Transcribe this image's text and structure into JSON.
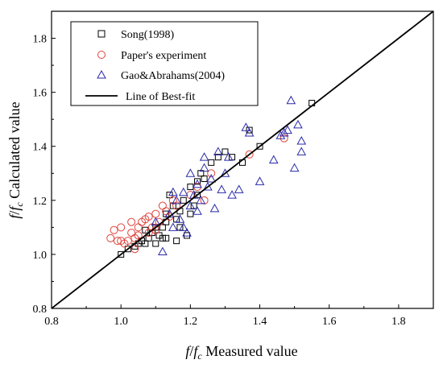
{
  "chart_data": {
    "type": "scatter",
    "title": "",
    "xlabel": {
      "f": "f",
      "slash": "/",
      "fc": "f",
      "fc_sub": "c",
      "text": " Measured value"
    },
    "ylabel": {
      "f": "f",
      "slash": "/",
      "fc": "f",
      "fc_sub": "c",
      "text": " Calculated value"
    },
    "xlim": [
      0.8,
      1.9
    ],
    "ylim": [
      0.8,
      1.9
    ],
    "x_ticks": [
      0.8,
      1.0,
      1.2,
      1.4,
      1.6,
      1.8
    ],
    "y_ticks": [
      0.8,
      1.0,
      1.2,
      1.4,
      1.6,
      1.8
    ],
    "tick_labels": [
      "0.8",
      "1.0",
      "1.2",
      "1.4",
      "1.6",
      "1.8"
    ],
    "grid": false,
    "legend_position": "top-left",
    "legend": [
      {
        "label": "Song(1998)",
        "marker": "square",
        "color": "#000000"
      },
      {
        "label": "Paper's experiment",
        "marker": "circle",
        "color": "#e0413a"
      },
      {
        "label": "Gao&Abrahams(2004)",
        "marker": "triangle",
        "color": "#2a2aa8"
      },
      {
        "label": "Line of Best-fit",
        "marker": "line",
        "color": "#000000"
      }
    ],
    "best_fit_line": {
      "x": [
        0.8,
        1.9
      ],
      "y": [
        0.8,
        1.9
      ]
    },
    "series": [
      {
        "name": "Song(1998)",
        "marker": "square",
        "color": "#000000",
        "points": [
          [
            1.0,
            1.0
          ],
          [
            1.02,
            1.02
          ],
          [
            1.04,
            1.03
          ],
          [
            1.05,
            1.04
          ],
          [
            1.06,
            1.05
          ],
          [
            1.07,
            1.04
          ],
          [
            1.08,
            1.06
          ],
          [
            1.09,
            1.08
          ],
          [
            1.1,
            1.04
          ],
          [
            1.1,
            1.1
          ],
          [
            1.11,
            1.07
          ],
          [
            1.12,
            1.1
          ],
          [
            1.12,
            1.06
          ],
          [
            1.13,
            1.12
          ],
          [
            1.13,
            1.15
          ],
          [
            1.14,
            1.22
          ],
          [
            1.15,
            1.18
          ],
          [
            1.16,
            1.13
          ],
          [
            1.16,
            1.05
          ],
          [
            1.17,
            1.16
          ],
          [
            1.17,
            1.1
          ],
          [
            1.18,
            1.2
          ],
          [
            1.19,
            1.07
          ],
          [
            1.2,
            1.25
          ],
          [
            1.2,
            1.15
          ],
          [
            1.21,
            1.18
          ],
          [
            1.22,
            1.27
          ],
          [
            1.22,
            1.22
          ],
          [
            1.23,
            1.3
          ],
          [
            1.24,
            1.28
          ],
          [
            1.26,
            1.34
          ],
          [
            1.28,
            1.36
          ],
          [
            1.3,
            1.38
          ],
          [
            1.32,
            1.36
          ],
          [
            1.35,
            1.34
          ],
          [
            1.37,
            1.46
          ],
          [
            1.4,
            1.4
          ],
          [
            1.55,
            1.56
          ],
          [
            1.13,
            1.06
          ],
          [
            1.07,
            1.09
          ]
        ]
      },
      {
        "name": "Paper's experiment",
        "marker": "circle",
        "color": "#e0413a",
        "points": [
          [
            0.97,
            1.06
          ],
          [
            0.98,
            1.09
          ],
          [
            0.99,
            1.05
          ],
          [
            1.0,
            1.1
          ],
          [
            1.0,
            1.05
          ],
          [
            1.01,
            1.04
          ],
          [
            1.02,
            1.05
          ],
          [
            1.03,
            1.08
          ],
          [
            1.03,
            1.12
          ],
          [
            1.04,
            1.06
          ],
          [
            1.05,
            1.07
          ],
          [
            1.05,
            1.1
          ],
          [
            1.06,
            1.12
          ],
          [
            1.07,
            1.13
          ],
          [
            1.08,
            1.08
          ],
          [
            1.08,
            1.14
          ],
          [
            1.09,
            1.1
          ],
          [
            1.1,
            1.15
          ],
          [
            1.11,
            1.12
          ],
          [
            1.12,
            1.18
          ],
          [
            1.13,
            1.16
          ],
          [
            1.15,
            1.2
          ],
          [
            1.16,
            1.18
          ],
          [
            1.2,
            1.22
          ],
          [
            1.22,
            1.25
          ],
          [
            1.24,
            1.2
          ],
          [
            1.26,
            1.3
          ],
          [
            1.37,
            1.37
          ],
          [
            1.47,
            1.43
          ],
          [
            1.04,
            1.02
          ],
          [
            1.1,
            1.09
          ],
          [
            1.14,
            1.14
          ]
        ]
      },
      {
        "name": "Gao&Abrahams(2004)",
        "marker": "triangle",
        "color": "#2a2aa8",
        "points": [
          [
            1.1,
            1.12
          ],
          [
            1.12,
            1.01
          ],
          [
            1.14,
            1.15
          ],
          [
            1.15,
            1.1
          ],
          [
            1.16,
            1.2
          ],
          [
            1.17,
            1.13
          ],
          [
            1.18,
            1.23
          ],
          [
            1.19,
            1.08
          ],
          [
            1.2,
            1.3
          ],
          [
            1.2,
            1.18
          ],
          [
            1.21,
            1.22
          ],
          [
            1.22,
            1.16
          ],
          [
            1.22,
            1.26
          ],
          [
            1.23,
            1.2
          ],
          [
            1.24,
            1.32
          ],
          [
            1.25,
            1.25
          ],
          [
            1.26,
            1.28
          ],
          [
            1.27,
            1.17
          ],
          [
            1.28,
            1.38
          ],
          [
            1.29,
            1.24
          ],
          [
            1.3,
            1.3
          ],
          [
            1.31,
            1.36
          ],
          [
            1.32,
            1.22
          ],
          [
            1.34,
            1.24
          ],
          [
            1.36,
            1.47
          ],
          [
            1.37,
            1.45
          ],
          [
            1.4,
            1.27
          ],
          [
            1.44,
            1.35
          ],
          [
            1.46,
            1.44
          ],
          [
            1.47,
            1.45
          ],
          [
            1.48,
            1.46
          ],
          [
            1.49,
            1.57
          ],
          [
            1.5,
            1.32
          ],
          [
            1.51,
            1.48
          ],
          [
            1.52,
            1.42
          ],
          [
            1.52,
            1.38
          ],
          [
            1.18,
            1.1
          ],
          [
            1.24,
            1.36
          ],
          [
            1.15,
            1.23
          ]
        ]
      }
    ]
  }
}
